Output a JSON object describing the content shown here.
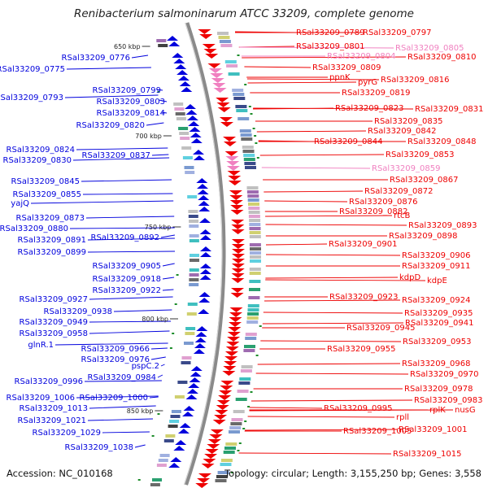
{
  "title": "Renibacterium salmoninarum ATCC 33209, complete genome",
  "footer": {
    "accession": "Accession: NC_010168",
    "summary": "Topology: circular; Length: 3,155,250 bp; Genes: 3,558"
  },
  "colors": {
    "forward_strand": "#0000dd",
    "reverse_strand": "#ee0000",
    "reverse_strand_light": "#f080c0",
    "backbone": "#8a8a8a",
    "tick": "#1c8c2a"
  },
  "scale_ticks": [
    "650 kbp",
    "700 kbp",
    "750 kbp",
    "800 kbp",
    "850 kbp"
  ],
  "left_labels": [
    "RSal33209_0776",
    "RSal33209_0775",
    "RSal33209_0799",
    "RSal33209_0793",
    "RSal33209_0803",
    "RSal33209_0814",
    "RSal33209_0820",
    "RSal33209_0824",
    "RSal33209_0837",
    "RSal33209_0830",
    "RSal33209_0845",
    "RSal33209_0855",
    "yajQ",
    "RSal33209_0873",
    "RSal33209_0880",
    "RSal33209_0892",
    "RSal33209_0891",
    "RSal33209_0899",
    "RSal33209_0905",
    "RSal33209_0918",
    "RSal33209_0922",
    "RSal33209_0927",
    "RSal33209_0938",
    "RSal33209_0949",
    "RSal33209_0958",
    "glnR.1",
    "RSal33209_0966",
    "RSal33209_0976",
    "pspC.2",
    "RSal33209_0996",
    "RSal33209_0984",
    "RSal33209_1006",
    "RSal33209_1000",
    "RSal33209_1013",
    "RSal33209_1021",
    "RSal33209_1029",
    "RSal33209_1038"
  ],
  "right_labels": [
    "RSal33209_0789",
    "RSal33209_0797",
    "RSal33209_0801",
    "RSal33209_0805",
    "RSal33209_0804",
    "RSal33209_0810",
    "RSal33209_0809",
    "ppnK",
    "pyrG",
    "RSal33209_0816",
    "RSal33209_0819",
    "RSal33209_0823",
    "RSal33209_0831",
    "RSal33209_0835",
    "RSal33209_0842",
    "RSal33209_0844",
    "RSal33209_0848",
    "RSal33209_0853",
    "RSal33209_0859",
    "RSal33209_0867",
    "RSal33209_0872",
    "RSal33209_0876",
    "RSal33209_0882",
    "rtcB",
    "RSal33209_0893",
    "RSal33209_0898",
    "RSal33209_0901",
    "RSal33209_0906",
    "RSal33209_0911",
    "kdpD",
    "kdpE",
    "RSal33209_0923",
    "RSal33209_0924",
    "RSal33209_0935",
    "RSal33209_0945",
    "RSal33209_0941",
    "RSal33209_0953",
    "RSal33209_0955",
    "RSal33209_0968",
    "RSal33209_0970",
    "RSal33209_0978",
    "RSal33209_0983",
    "RSal33209_0995",
    "rplK",
    "nusG",
    "rpll",
    "RSal33209_1005",
    "RSal33209_1001",
    "RSal33209_1015"
  ]
}
